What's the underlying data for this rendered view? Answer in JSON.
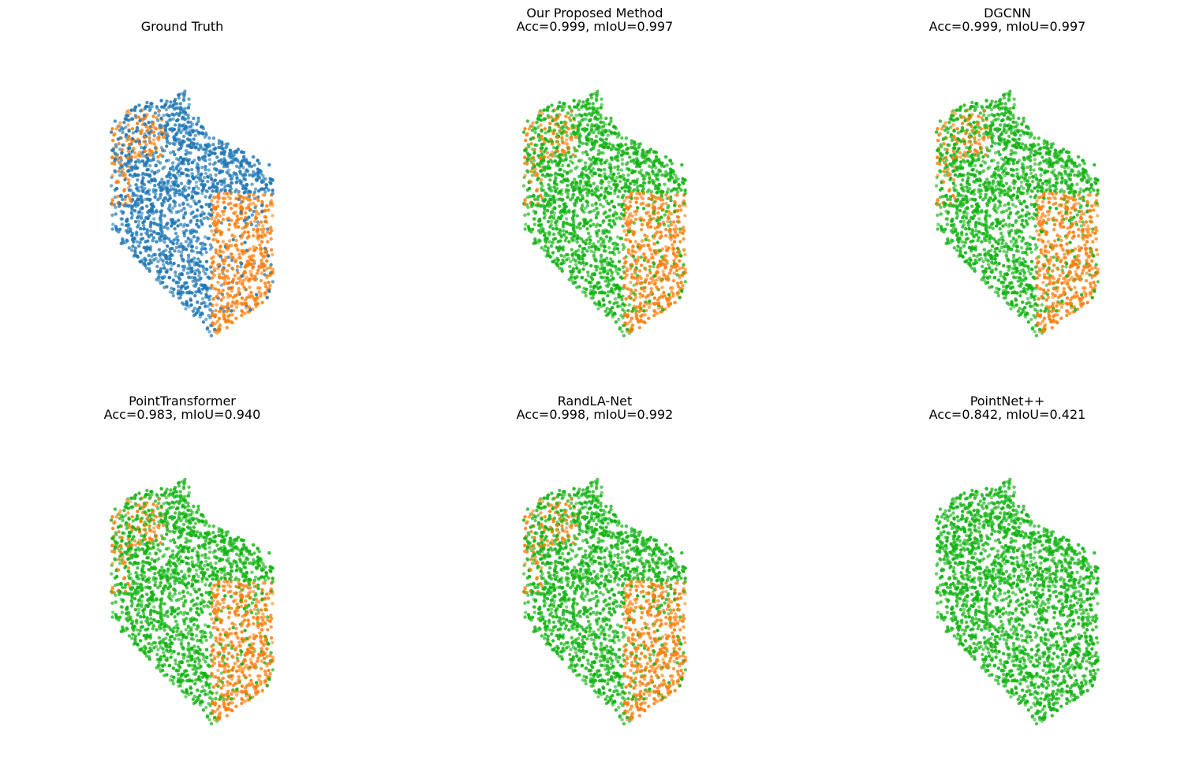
{
  "colors": {
    "class_a": "#1f77b4",
    "class_b": "#ff7f0e",
    "predicted_primary": "#12b312",
    "background": "#ffffff"
  },
  "chart_data": [
    {
      "type": "scatter",
      "title": "Ground Truth",
      "subtitle": "",
      "grid": false,
      "axes": "off",
      "color_scheme": "ground_truth",
      "series": [
        {
          "name": "",
          "color": "#1f77b4"
        },
        {
          "name": "",
          "color": "#ff7f0e"
        }
      ]
    },
    {
      "type": "scatter",
      "title": "Our Proposed Method",
      "subtitle": "Acc=0.999, mIoU=0.997",
      "grid": false,
      "axes": "off",
      "color_scheme": "prediction_good",
      "metrics": {
        "accuracy": 0.999,
        "miou": 0.997
      }
    },
    {
      "type": "scatter",
      "title": "DGCNN",
      "subtitle": "Acc=0.999, mIoU=0.997",
      "grid": false,
      "axes": "off",
      "color_scheme": "prediction_good",
      "metrics": {
        "accuracy": 0.999,
        "miou": 0.997
      }
    },
    {
      "type": "scatter",
      "title": "PointTransformer",
      "subtitle": "Acc=0.983, mIoU=0.940",
      "grid": false,
      "axes": "off",
      "color_scheme": "prediction_good",
      "metrics": {
        "accuracy": 0.983,
        "miou": 0.94
      }
    },
    {
      "type": "scatter",
      "title": "RandLA-Net",
      "subtitle": "Acc=0.998, mIoU=0.992",
      "grid": false,
      "axes": "off",
      "color_scheme": "prediction_good",
      "metrics": {
        "accuracy": 0.998,
        "miou": 0.992
      }
    },
    {
      "type": "scatter",
      "title": "PointNet++",
      "subtitle": "Acc=0.842, mIoU=0.421",
      "grid": false,
      "axes": "off",
      "color_scheme": "prediction_all_green",
      "metrics": {
        "accuracy": 0.842,
        "miou": 0.421
      }
    }
  ]
}
